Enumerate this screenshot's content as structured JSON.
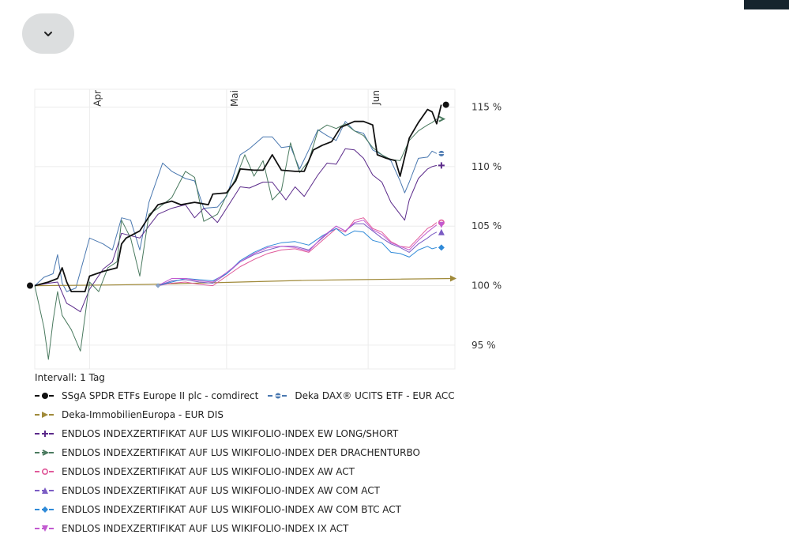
{
  "toggle": {
    "icon": "chevron-down-icon"
  },
  "chart_data": {
    "type": "line",
    "interval_label": "Intervall: 1 Tag",
    "x_tick_labels": [
      "Apr",
      "Mai",
      "Jun"
    ],
    "y_tick_labels": [
      "95 %",
      "100 %",
      "105 %",
      "110 %",
      "115 %"
    ],
    "y_ticks": [
      95,
      100,
      105,
      110,
      115
    ],
    "ylim": [
      93,
      116.5
    ],
    "x_range": [
      0,
      92
    ],
    "x_ticks": [
      12,
      42,
      73
    ],
    "grid": true,
    "legend_position": "bottom",
    "series": [
      {
        "name": "SSgA SPDR ETFs Europe II plc - comdirect",
        "color": "#111111",
        "marker": "circle",
        "width": 1.8,
        "points": [
          [
            0,
            100
          ],
          [
            3,
            100.3
          ],
          [
            5,
            100.6
          ],
          [
            6,
            101.5
          ],
          [
            7,
            100.3
          ],
          [
            8,
            99.5
          ],
          [
            10,
            99.5
          ],
          [
            11,
            99.5
          ],
          [
            12,
            100.8
          ],
          [
            15,
            101.2
          ],
          [
            18,
            101.5
          ],
          [
            19,
            103.5
          ],
          [
            20,
            104
          ],
          [
            23,
            104.6
          ],
          [
            25,
            105.8
          ],
          [
            27,
            106.8
          ],
          [
            30,
            107.1
          ],
          [
            32,
            106.8
          ],
          [
            35,
            107
          ],
          [
            38,
            106.8
          ],
          [
            39,
            107.7
          ],
          [
            42,
            107.8
          ],
          [
            44,
            108.8
          ],
          [
            45,
            109.8
          ],
          [
            48,
            109.7
          ],
          [
            50,
            109.7
          ],
          [
            52,
            111
          ],
          [
            54,
            109.7
          ],
          [
            57,
            109.6
          ],
          [
            59,
            109.6
          ],
          [
            61,
            111.4
          ],
          [
            63,
            111.8
          ],
          [
            65,
            112.1
          ],
          [
            67,
            113.3
          ],
          [
            70,
            113.8
          ],
          [
            72,
            113.8
          ],
          [
            74,
            113.5
          ],
          [
            75,
            111
          ],
          [
            77,
            110.7
          ],
          [
            79,
            110.5
          ],
          [
            80,
            109.2
          ],
          [
            82,
            112.4
          ],
          [
            84,
            113.7
          ],
          [
            86,
            114.8
          ],
          [
            87,
            114.6
          ],
          [
            88,
            113.6
          ],
          [
            89,
            115.2
          ]
        ]
      },
      {
        "name": "Deka DAX® UCITS ETF - EUR ACC",
        "color": "#4a78b0",
        "marker": "minus-circle",
        "width": 1,
        "points": [
          [
            0,
            100
          ],
          [
            2,
            100.7
          ],
          [
            4,
            101
          ],
          [
            5,
            102.6
          ],
          [
            6,
            100.2
          ],
          [
            7,
            99.5
          ],
          [
            9,
            99.8
          ],
          [
            12,
            104
          ],
          [
            15,
            103.5
          ],
          [
            17,
            103
          ],
          [
            19,
            105.7
          ],
          [
            21,
            105.5
          ],
          [
            23,
            103
          ],
          [
            25,
            107
          ],
          [
            28,
            110.3
          ],
          [
            30,
            109.6
          ],
          [
            33,
            109
          ],
          [
            35,
            108.8
          ],
          [
            37,
            106.5
          ],
          [
            40,
            106.6
          ],
          [
            42,
            107.5
          ],
          [
            45,
            111
          ],
          [
            47,
            111.5
          ],
          [
            50,
            112.5
          ],
          [
            52,
            112.5
          ],
          [
            54,
            111.6
          ],
          [
            56,
            111.7
          ],
          [
            58,
            109.8
          ],
          [
            60,
            111.4
          ],
          [
            62,
            113.1
          ],
          [
            64,
            112.6
          ],
          [
            66,
            112.2
          ],
          [
            68,
            113.8
          ],
          [
            70,
            113
          ],
          [
            72,
            112.8
          ],
          [
            74,
            111.4
          ],
          [
            76,
            111
          ],
          [
            78,
            110.5
          ],
          [
            80,
            108.8
          ],
          [
            81,
            107.8
          ],
          [
            82,
            108.7
          ],
          [
            84,
            110.7
          ],
          [
            86,
            110.8
          ],
          [
            87,
            111.3
          ],
          [
            88,
            111.1
          ]
        ]
      },
      {
        "name": "Deka-ImmobilienEuropa - EUR DIS",
        "color": "#a08a3a",
        "marker": "triangle-right",
        "width": 1.2,
        "points": [
          [
            0,
            100
          ],
          [
            15,
            100.05
          ],
          [
            25,
            100.1
          ],
          [
            35,
            100.2
          ],
          [
            45,
            100.3
          ],
          [
            55,
            100.4
          ],
          [
            60,
            100.45
          ],
          [
            70,
            100.5
          ],
          [
            80,
            100.55
          ],
          [
            92,
            100.6
          ]
        ]
      },
      {
        "name": "ENDLOS INDEXZERTIFIKAT AUF LUS WIKIFOLIO-INDEX EW LONG/SHORT",
        "color": "#5b2a8a",
        "marker": "plus",
        "width": 1,
        "points": [
          [
            0,
            100
          ],
          [
            3,
            100.2
          ],
          [
            5,
            100.3
          ],
          [
            7,
            98.5
          ],
          [
            8,
            98.3
          ],
          [
            10,
            97.8
          ],
          [
            12,
            99.7
          ],
          [
            15,
            101.4
          ],
          [
            17,
            102
          ],
          [
            19,
            104.4
          ],
          [
            21,
            104.2
          ],
          [
            23,
            104
          ],
          [
            25,
            105
          ],
          [
            27,
            106
          ],
          [
            30,
            106.5
          ],
          [
            33,
            106.8
          ],
          [
            35,
            105.7
          ],
          [
            37,
            106.5
          ],
          [
            40,
            105.3
          ],
          [
            42,
            106.5
          ],
          [
            45,
            108.3
          ],
          [
            47,
            108.2
          ],
          [
            50,
            108.7
          ],
          [
            52,
            108.7
          ],
          [
            55,
            107.2
          ],
          [
            57,
            108.3
          ],
          [
            59,
            107.5
          ],
          [
            62,
            109.3
          ],
          [
            64,
            110.3
          ],
          [
            66,
            110.2
          ],
          [
            68,
            111.5
          ],
          [
            70,
            111.4
          ],
          [
            72,
            110.7
          ],
          [
            74,
            109.3
          ],
          [
            76,
            108.7
          ],
          [
            78,
            107
          ],
          [
            80,
            106
          ],
          [
            81,
            105.5
          ],
          [
            82,
            107.2
          ],
          [
            84,
            109
          ],
          [
            86,
            109.8
          ],
          [
            87,
            110
          ],
          [
            88,
            110.1
          ]
        ]
      },
      {
        "name": "ENDLOS INDEXZERTIFIKAT AUF LUS WIKIFOLIO-INDEX DER DRACHENTURBO",
        "color": "#4a7a5f",
        "marker": "chevron-right",
        "width": 1,
        "points": [
          [
            0,
            100
          ],
          [
            2,
            96.5
          ],
          [
            3,
            93.8
          ],
          [
            4,
            97
          ],
          [
            5,
            99.5
          ],
          [
            6,
            97.5
          ],
          [
            8,
            96.3
          ],
          [
            10,
            94.5
          ],
          [
            12,
            100.3
          ],
          [
            14,
            99.5
          ],
          [
            16,
            101.5
          ],
          [
            18,
            102
          ],
          [
            19,
            105.5
          ],
          [
            21,
            104
          ],
          [
            23,
            100.8
          ],
          [
            25,
            106
          ],
          [
            27,
            106.5
          ],
          [
            30,
            107.4
          ],
          [
            33,
            109.6
          ],
          [
            35,
            109.1
          ],
          [
            37,
            105.4
          ],
          [
            40,
            106
          ],
          [
            42,
            107.6
          ],
          [
            44,
            109
          ],
          [
            46,
            111
          ],
          [
            48,
            109.2
          ],
          [
            50,
            110.5
          ],
          [
            52,
            107.2
          ],
          [
            54,
            108
          ],
          [
            56,
            112
          ],
          [
            58,
            109.5
          ],
          [
            60,
            110.5
          ],
          [
            62,
            113
          ],
          [
            64,
            113.5
          ],
          [
            66,
            113.2
          ],
          [
            68,
            113.6
          ],
          [
            70,
            113
          ],
          [
            72,
            112.6
          ],
          [
            74,
            111.6
          ],
          [
            76,
            111
          ],
          [
            78,
            110.6
          ],
          [
            80,
            110.5
          ],
          [
            82,
            112.2
          ],
          [
            84,
            113
          ],
          [
            86,
            113.5
          ],
          [
            87,
            113.7
          ],
          [
            88,
            114
          ]
        ]
      },
      {
        "name": "ENDLOS INDEXZERTIFIKAT AUF LUS WIKIFOLIO-INDEX AW ACT",
        "color": "#e05a9a",
        "marker": "open-circle",
        "width": 1,
        "points": [
          [
            27,
            100
          ],
          [
            30,
            100.2
          ],
          [
            33,
            100.3
          ],
          [
            36,
            100.1
          ],
          [
            39,
            100
          ],
          [
            42,
            100.8
          ],
          [
            45,
            101.6
          ],
          [
            48,
            102.2
          ],
          [
            51,
            102.7
          ],
          [
            54,
            103
          ],
          [
            57,
            103.1
          ],
          [
            60,
            102.8
          ],
          [
            63,
            103.8
          ],
          [
            66,
            104.8
          ],
          [
            68,
            104.5
          ],
          [
            70,
            105.5
          ],
          [
            72,
            105.7
          ],
          [
            74,
            104.8
          ],
          [
            76,
            104.5
          ],
          [
            78,
            103.7
          ],
          [
            80,
            103.3
          ],
          [
            82,
            103.2
          ],
          [
            84,
            104
          ],
          [
            86,
            104.8
          ],
          [
            87,
            105
          ],
          [
            88,
            105.3
          ]
        ]
      },
      {
        "name": "ENDLOS INDEXZERTIFIKAT AUF LUS WIKIFOLIO-INDEX AW COM ACT",
        "color": "#7b5cc4",
        "marker": "triangle-up",
        "width": 1,
        "points": [
          [
            27,
            100
          ],
          [
            30,
            100.4
          ],
          [
            33,
            100.5
          ],
          [
            36,
            100.3
          ],
          [
            39,
            100.2
          ],
          [
            42,
            101
          ],
          [
            45,
            102
          ],
          [
            48,
            102.6
          ],
          [
            51,
            103
          ],
          [
            54,
            103.3
          ],
          [
            57,
            103.3
          ],
          [
            60,
            103
          ],
          [
            63,
            104
          ],
          [
            66,
            105
          ],
          [
            68,
            104.6
          ],
          [
            70,
            105.2
          ],
          [
            72,
            105.2
          ],
          [
            74,
            104.6
          ],
          [
            76,
            104
          ],
          [
            78,
            103.5
          ],
          [
            80,
            103.2
          ],
          [
            82,
            102.8
          ],
          [
            84,
            103.5
          ],
          [
            86,
            104
          ],
          [
            87,
            104.3
          ],
          [
            88,
            104.5
          ]
        ]
      },
      {
        "name": "ENDLOS INDEXZERTIFIKAT AUF LUS WIKIFOLIO-INDEX AW COM BTC ACT",
        "color": "#2f8ad8",
        "marker": "diamond",
        "width": 1,
        "points": [
          [
            27,
            100
          ],
          [
            30,
            100.3
          ],
          [
            33,
            100.6
          ],
          [
            36,
            100.5
          ],
          [
            39,
            100.4
          ],
          [
            42,
            101
          ],
          [
            45,
            102.1
          ],
          [
            48,
            102.8
          ],
          [
            51,
            103.3
          ],
          [
            54,
            103.6
          ],
          [
            57,
            103.7
          ],
          [
            60,
            103.4
          ],
          [
            63,
            104.2
          ],
          [
            66,
            104.8
          ],
          [
            68,
            104.2
          ],
          [
            70,
            104.6
          ],
          [
            72,
            104.5
          ],
          [
            74,
            103.8
          ],
          [
            76,
            103.6
          ],
          [
            78,
            102.8
          ],
          [
            80,
            102.7
          ],
          [
            82,
            102.4
          ],
          [
            84,
            103
          ],
          [
            86,
            103.3
          ],
          [
            87,
            103.1
          ],
          [
            88,
            103.2
          ]
        ]
      },
      {
        "name": "ENDLOS INDEXZERTIFIKAT AUF LUS WIKIFOLIO-INDEX IX ACT",
        "color": "#c25ad0",
        "marker": "triangle-down",
        "width": 1,
        "points": [
          [
            27,
            100
          ],
          [
            30,
            100.6
          ],
          [
            33,
            100.6
          ],
          [
            36,
            100.4
          ],
          [
            39,
            100.3
          ],
          [
            42,
            101.1
          ],
          [
            45,
            102
          ],
          [
            48,
            102.7
          ],
          [
            51,
            103.2
          ],
          [
            54,
            103.3
          ],
          [
            57,
            103.2
          ],
          [
            60,
            102.9
          ],
          [
            63,
            104.1
          ],
          [
            66,
            105
          ],
          [
            68,
            104.6
          ],
          [
            70,
            105.3
          ],
          [
            72,
            105.5
          ],
          [
            74,
            104.7
          ],
          [
            76,
            104.3
          ],
          [
            78,
            103.6
          ],
          [
            80,
            103.3
          ],
          [
            82,
            103
          ],
          [
            84,
            103.8
          ],
          [
            86,
            104.5
          ],
          [
            87,
            104.8
          ],
          [
            88,
            105.1
          ]
        ]
      }
    ]
  }
}
